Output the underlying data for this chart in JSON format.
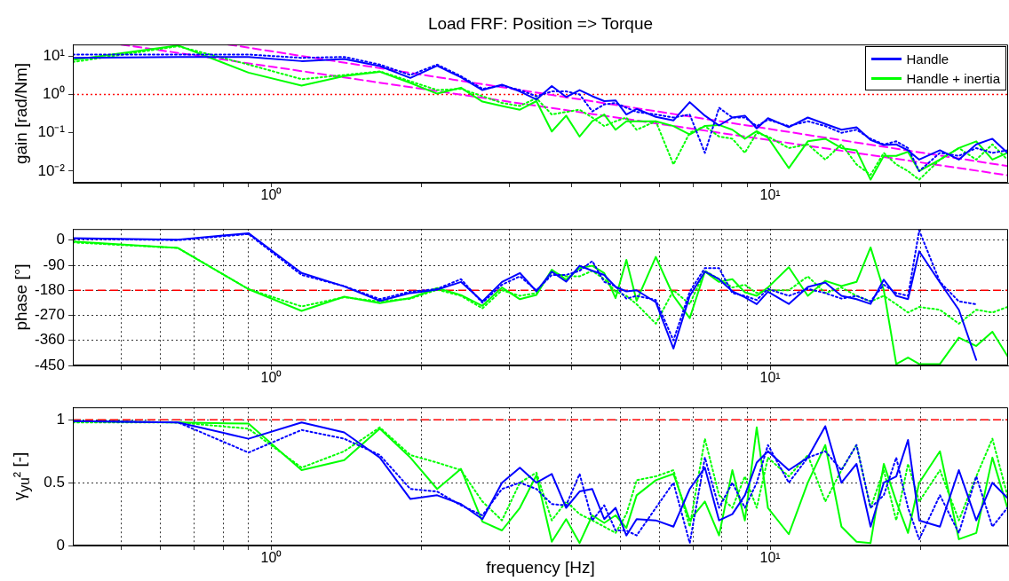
{
  "chart_data": [
    {
      "type": "line",
      "title": "Load FRF: Position => Torque",
      "ylabel": "gain [rad/Nm]",
      "log": "xy",
      "grid": false,
      "legend": "top right",
      "x": [
        0.4,
        0.65,
        0.9,
        1.15,
        1.4,
        1.65,
        1.9,
        2.15,
        2.4,
        2.65,
        2.9,
        3.15,
        3.4,
        3.65,
        3.9,
        4.15,
        4.4,
        4.65,
        4.9,
        5.15,
        5.4,
        5.9,
        6.4,
        6.9,
        7.4,
        7.9,
        8.4,
        8.9,
        9.4,
        9.9,
        10.9,
        11.9,
        12.9,
        13.9,
        14.9,
        15.9,
        16.9,
        17.9,
        18.9,
        19.9,
        21.9,
        23.9,
        25.9,
        27.9,
        29.9
      ],
      "xlim": [
        0.4,
        30
      ],
      "xticks": [
        {
          "value": 0.5,
          "label": null
        },
        {
          "value": 0.6,
          "label": null
        },
        {
          "value": 0.7,
          "label": null
        },
        {
          "value": 0.8,
          "label": null
        },
        {
          "value": 0.9,
          "label": null
        },
        {
          "value": 1,
          "label": "10⁰"
        },
        {
          "value": 2,
          "label": null
        },
        {
          "value": 3,
          "label": null
        },
        {
          "value": 4,
          "label": null
        },
        {
          "value": 5,
          "label": null
        },
        {
          "value": 6,
          "label": null
        },
        {
          "value": 7,
          "label": null
        },
        {
          "value": 8,
          "label": null
        },
        {
          "value": 9,
          "label": null
        },
        {
          "value": 10,
          "label": "10¹"
        },
        {
          "value": 20,
          "label": null
        }
      ],
      "ylim": [
        0.005,
        20
      ],
      "yticks": [
        {
          "value": 0.01,
          "label": "10⁻²"
        },
        {
          "value": 0.1,
          "label": "10⁻¹"
        },
        {
          "value": 1,
          "label": "10⁰"
        },
        {
          "value": 10,
          "label": "10¹"
        }
      ],
      "ref_lines": [
        {
          "axis": "y",
          "value": 1,
          "color": "#ff0000",
          "line_style": "dotted"
        }
      ],
      "series": [
        {
          "name": "Handle",
          "color": "#0000ff",
          "values": [
            9,
            9.5,
            9.5,
            7.4,
            8.4,
            5.5,
            2.7,
            5.6,
            2.8,
            1.3,
            1.8,
            1.2,
            0.74,
            1.66,
            0.86,
            1.3,
            0.9,
            0.67,
            0.7,
            0.3,
            0.42,
            0.26,
            0.21,
            0.63,
            0.28,
            0.155,
            0.25,
            0.28,
            0.13,
            0.24,
            0.14,
            0.25,
            0.17,
            0.12,
            0.14,
            0.065,
            0.048,
            0.05,
            0.035,
            0.02,
            0.035,
            0.02,
            0.05,
            0.07,
            0.03
          ]
        },
        {
          "color": "#0000ff",
          "line_style": "dotted",
          "values": [
            11,
            11,
            11,
            9,
            9.5,
            6,
            3.2,
            6,
            3,
            1.4,
            1.7,
            1.3,
            0.9,
            1.2,
            1.2,
            1.0,
            0.36,
            0.55,
            0.6,
            0.45,
            0.35,
            0.3,
            0.25,
            0.3,
            0.03,
            0.45,
            0.25,
            0.25,
            0.15,
            0.22,
            0.15,
            0.2,
            0.15,
            0.1,
            0.12,
            0.07,
            0.05,
            0.06,
            0.04,
            0.01,
            0.03,
            0.025,
            0.04,
            0.03,
            0.035
          ]
        },
        {
          "name": "Handle + inertia",
          "color": "#00ff00",
          "values": [
            8,
            19,
            3.7,
            1.7,
            3,
            3.9,
            2.0,
            1.05,
            1.5,
            0.65,
            0.5,
            0.4,
            0.67,
            0.108,
            0.28,
            0.08,
            0.2,
            0.3,
            0.12,
            0.2,
            0.2,
            0.2,
            0.15,
            0.09,
            0.15,
            0.16,
            0.12,
            0.07,
            0.11,
            0.075,
            0.012,
            0.06,
            0.07,
            0.04,
            0.035,
            0.006,
            0.025,
            0.025,
            0.032,
            0.01,
            0.02,
            0.04,
            0.06,
            0.02,
            0.03
          ]
        },
        {
          "color": "#00ff00",
          "line_style": "dotted",
          "values": [
            7,
            18,
            6,
            2.5,
            3.2,
            4,
            2.2,
            1.3,
            1.4,
            0.9,
            0.6,
            0.5,
            0.8,
            0.3,
            0.35,
            0.4,
            0.25,
            0.15,
            0.2,
            0.25,
            0.12,
            0.2,
            0.015,
            0.1,
            0.15,
            0.08,
            0.07,
            0.03,
            0.1,
            0.08,
            0.04,
            0.05,
            0.02,
            0.05,
            0.015,
            0.008,
            0.03,
            0.015,
            0.01,
            0.006,
            0.02,
            0.04,
            0.02,
            0.05,
            0.02
          ]
        },
        {
          "type": "line",
          "color": "#ff00ff",
          "line_style": "dashed",
          "x": [
            0.82,
            30
          ],
          "values": [
            20,
            0.0135
          ]
        },
        {
          "type": "line",
          "color": "#ff00ff",
          "line_style": "dashed",
          "x": [
            0.5,
            30
          ],
          "values": [
            20,
            0.0078
          ]
        }
      ]
    },
    {
      "type": "line",
      "ylabel": "phase [°]",
      "log": "x",
      "grid": true,
      "x": [
        0.4,
        0.65,
        0.9,
        1.15,
        1.4,
        1.65,
        1.9,
        2.15,
        2.4,
        2.65,
        2.9,
        3.15,
        3.4,
        3.65,
        3.9,
        4.15,
        4.4,
        4.65,
        4.9,
        5.15,
        5.4,
        5.9,
        6.4,
        6.9,
        7.4,
        7.9,
        8.4,
        8.9,
        9.4,
        9.9,
        10.9,
        11.9,
        12.9,
        13.9,
        14.9,
        15.9,
        16.9,
        17.9,
        18.9,
        19.9,
        21.9,
        23.9,
        25.9,
        27.9,
        29.9
      ],
      "xlim": [
        0.4,
        30
      ],
      "xticks": [
        {
          "value": 0.5,
          "label": null
        },
        {
          "value": 0.6,
          "label": null
        },
        {
          "value": 0.7,
          "label": null
        },
        {
          "value": 0.8,
          "label": null
        },
        {
          "value": 0.9,
          "label": null
        },
        {
          "value": 1,
          "label": "10⁰"
        },
        {
          "value": 2,
          "label": null
        },
        {
          "value": 3,
          "label": null
        },
        {
          "value": 4,
          "label": null
        },
        {
          "value": 5,
          "label": null
        },
        {
          "value": 6,
          "label": null
        },
        {
          "value": 7,
          "label": null
        },
        {
          "value": 8,
          "label": null
        },
        {
          "value": 9,
          "label": null
        },
        {
          "value": 10,
          "label": "10¹"
        },
        {
          "value": 20,
          "label": null
        }
      ],
      "ylim": [
        -450,
        40
      ],
      "yticks": [
        -450,
        -360,
        -270,
        -180,
        -90,
        0
      ],
      "ref_lines": [
        {
          "axis": "y",
          "value": -180,
          "color": "#ff0000",
          "line_style": "dashed"
        }
      ],
      "series": [
        {
          "color": "#0000ff",
          "values": [
            7,
            2,
            25,
            -118,
            -166,
            -218,
            -190,
            -178,
            -150,
            -220,
            -150,
            -118,
            -184,
            -113,
            -149,
            -92,
            -110,
            -125,
            -168,
            -184,
            -180,
            -223,
            -389,
            -200,
            -113,
            -140,
            -184,
            -205,
            -230,
            -185,
            -229,
            -168,
            -152,
            -200,
            -212,
            -229,
            -142,
            -200,
            -212,
            -40,
            -152,
            -250,
            -430,
            null,
            null
          ]
        },
        {
          "color": "#0000ff",
          "line_style": "dotted",
          "values": [
            5,
            0,
            22,
            -125,
            -165,
            -212,
            -185,
            -175,
            -140,
            -225,
            -160,
            -130,
            -180,
            -125,
            -125,
            -110,
            -75,
            -150,
            -165,
            -210,
            -200,
            -215,
            -360,
            -185,
            -100,
            -100,
            -190,
            -200,
            -215,
            -175,
            -200,
            -175,
            -190,
            -210,
            -200,
            -220,
            -160,
            -190,
            -200,
            35,
            -150,
            -220,
            -230,
            null,
            null
          ]
        },
        {
          "color": "#00ff00",
          "values": [
            -5,
            -28,
            -176,
            -254,
            -203,
            -226,
            -208,
            -172,
            -197,
            -236,
            -170,
            -212,
            -197,
            -106,
            -142,
            -100,
            -92,
            -118,
            -208,
            -71,
            -218,
            -60,
            -200,
            -280,
            -113,
            -150,
            -140,
            -187,
            -200,
            -170,
            -97,
            -200,
            -146,
            -165,
            -150,
            -26,
            -180,
            -445,
            -422,
            -445,
            -445,
            -350,
            -380,
            -329,
            -416
          ]
        },
        {
          "color": "#00ff00",
          "line_style": "dotted",
          "values": [
            -8,
            -28,
            -176,
            -238,
            -205,
            -220,
            -210,
            -178,
            -200,
            -245,
            -180,
            -200,
            -190,
            -115,
            -130,
            -130,
            -110,
            -140,
            -185,
            -200,
            -230,
            -300,
            -180,
            -230,
            -110,
            -140,
            -170,
            -160,
            -190,
            -180,
            -180,
            -130,
            -190,
            -170,
            -200,
            -220,
            -200,
            -230,
            -260,
            -240,
            -250,
            -300,
            -250,
            -260,
            -240
          ]
        }
      ]
    },
    {
      "type": "line",
      "ylabel": "γ$_{yu}$² [-]",
      "xlabel": "frequency [Hz]",
      "log": "x",
      "grid": true,
      "x": [
        0.4,
        0.65,
        0.9,
        1.15,
        1.4,
        1.65,
        1.9,
        2.15,
        2.4,
        2.65,
        2.9,
        3.15,
        3.4,
        3.65,
        3.9,
        4.15,
        4.4,
        4.65,
        4.9,
        5.15,
        5.4,
        5.9,
        6.4,
        6.9,
        7.4,
        7.9,
        8.4,
        8.9,
        9.4,
        9.9,
        10.9,
        11.9,
        12.9,
        13.9,
        14.9,
        15.9,
        16.9,
        17.9,
        18.9,
        19.9,
        21.9,
        23.9,
        25.9,
        27.9,
        29.9
      ],
      "xlim": [
        0.4,
        30
      ],
      "xticks": [
        {
          "value": 0.5,
          "label": null
        },
        {
          "value": 0.6,
          "label": null
        },
        {
          "value": 0.7,
          "label": null
        },
        {
          "value": 0.8,
          "label": null
        },
        {
          "value": 0.9,
          "label": null
        },
        {
          "value": 1,
          "label": "10⁰"
        },
        {
          "value": 2,
          "label": null
        },
        {
          "value": 3,
          "label": null
        },
        {
          "value": 4,
          "label": null
        },
        {
          "value": 5,
          "label": null
        },
        {
          "value": 6,
          "label": null
        },
        {
          "value": 7,
          "label": null
        },
        {
          "value": 8,
          "label": null
        },
        {
          "value": 9,
          "label": null
        },
        {
          "value": 10,
          "label": "10¹"
        },
        {
          "value": 20,
          "label": null
        }
      ],
      "ylim": [
        0,
        1.1
      ],
      "yticks": [
        0,
        0.5,
        1
      ],
      "ref_lines": [
        {
          "axis": "y",
          "value": 1,
          "color": "#ff0000",
          "line_style": "dashed"
        }
      ],
      "series": [
        {
          "color": "#0000ff",
          "values": [
            0.99,
            0.98,
            0.85,
            0.98,
            0.9,
            0.7,
            0.37,
            0.4,
            0.33,
            0.21,
            0.5,
            0.62,
            0.5,
            0.57,
            0.3,
            0.43,
            0.45,
            0.21,
            0.3,
            0.08,
            0.21,
            0.2,
            0.15,
            0.45,
            0.62,
            0.2,
            0.25,
            0.4,
            0.66,
            0.75,
            0.6,
            0.7,
            0.95,
            0.5,
            0.65,
            0.15,
            0.5,
            0.55,
            0.84,
            0.2,
            0.15,
            0.6,
            0.2,
            0.5,
            0.38
          ]
        },
        {
          "color": "#0000ff",
          "line_style": "dotted",
          "values": [
            0.99,
            0.98,
            0.74,
            0.92,
            0.85,
            0.72,
            0.45,
            0.43,
            0.32,
            0.24,
            0.45,
            0.5,
            0.45,
            0.33,
            0.32,
            0.57,
            0.2,
            0.32,
            0.12,
            0.12,
            0.08,
            0.3,
            0.5,
            0.02,
            0.7,
            0.3,
            0.5,
            0.3,
            0.5,
            0.8,
            0.5,
            0.7,
            0.75,
            0.6,
            0.8,
            0.3,
            0.4,
            0.7,
            0.3,
            0.05,
            0.4,
            0.1,
            0.55,
            0.15,
            0.3
          ]
        },
        {
          "color": "#00ff00",
          "values": [
            0.99,
            0.98,
            0.97,
            0.6,
            0.68,
            0.93,
            0.7,
            0.45,
            0.61,
            0.19,
            0.12,
            0.3,
            0.56,
            0.03,
            0.21,
            0.02,
            0.24,
            0.18,
            0.24,
            0.14,
            0.4,
            0.52,
            0.57,
            0.2,
            0.35,
            0.08,
            0.6,
            0.2,
            0.94,
            0.3,
            0.09,
            0.5,
            0.8,
            0.15,
            0.03,
            0.02,
            0.65,
            0.35,
            0.1,
            0.5,
            0.75,
            0.05,
            0.1,
            0.7,
            0.3
          ]
        },
        {
          "color": "#00ff00",
          "line_style": "dotted",
          "values": [
            0.98,
            0.98,
            0.93,
            0.62,
            0.75,
            0.94,
            0.72,
            0.66,
            0.6,
            0.35,
            0.2,
            0.5,
            0.58,
            0.2,
            0.35,
            0.25,
            0.2,
            0.15,
            0.1,
            0.25,
            0.52,
            0.55,
            0.6,
            0.15,
            0.85,
            0.4,
            0.3,
            0.55,
            0.3,
            0.7,
            0.55,
            0.72,
            0.35,
            0.6,
            0.8,
            0.3,
            0.6,
            0.2,
            0.65,
            0.35,
            0.6,
            0.2,
            0.55,
            0.85,
            0.4
          ]
        }
      ]
    }
  ]
}
